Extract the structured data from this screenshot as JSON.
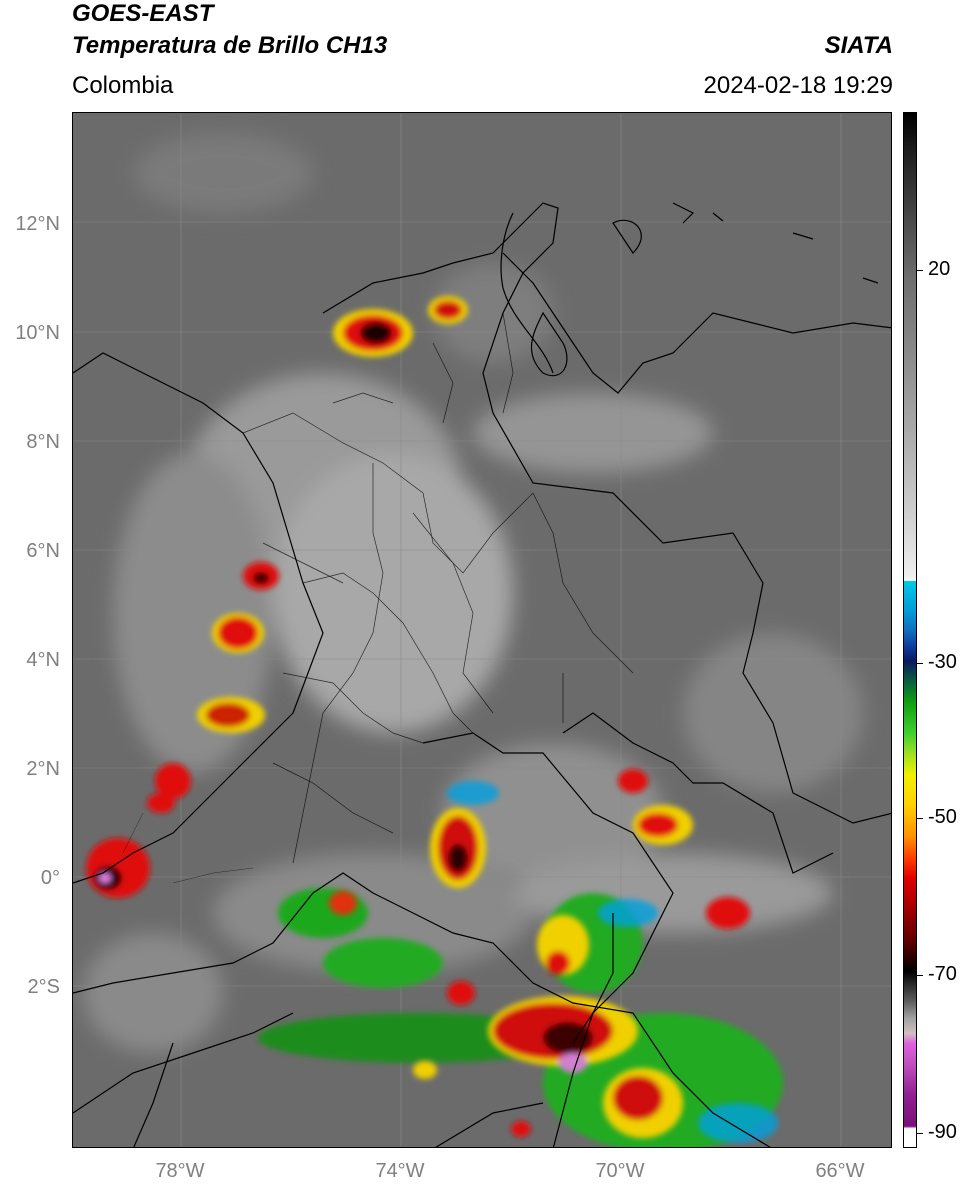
{
  "header": {
    "satellite": "GOES-EAST",
    "product": "Temperatura de Brillo CH13",
    "org": "SIATA",
    "region": "Colombia",
    "datetime": "2024-02-18 19:29"
  },
  "map": {
    "lat_labels": [
      "12°N",
      "10°N",
      "8°N",
      "6°N",
      "4°N",
      "2°N",
      "0°",
      "2°S"
    ],
    "lon_labels": [
      "78°W",
      "74°W",
      "70°W",
      "66°W"
    ],
    "extent": {
      "lon_min": -79.9,
      "lon_max": -65.0,
      "lat_min": -4.9,
      "lat_max": 14.1
    }
  },
  "colorbar": {
    "labels": [
      "20",
      "-30",
      "-50",
      "-70",
      "-90"
    ],
    "range": {
      "min": -92,
      "max": 42
    }
  }
}
